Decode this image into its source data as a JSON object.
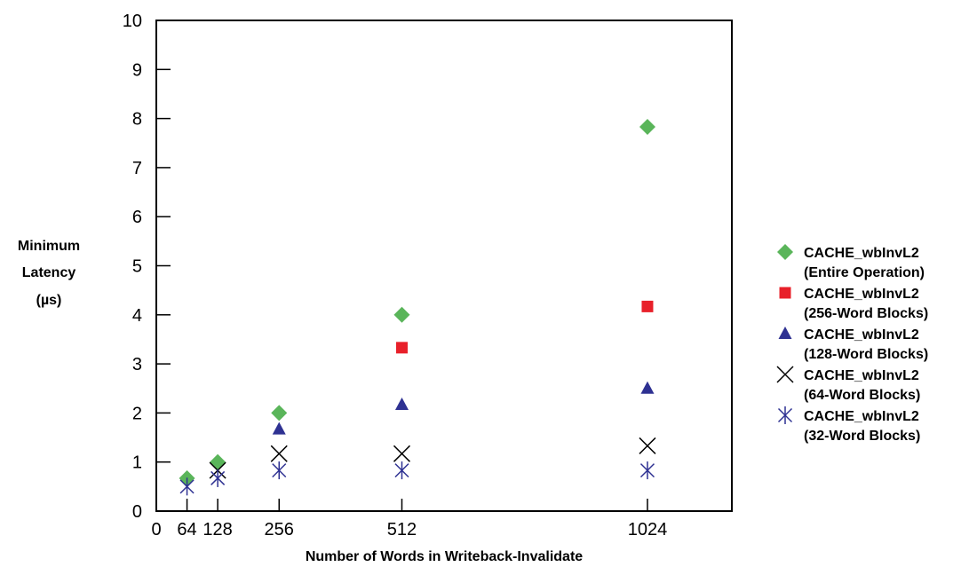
{
  "chart_data": {
    "type": "scatter",
    "xlabel": "Number of Words in Writeback-Invalidate",
    "ylabel_lines": [
      "Minimum",
      "Latency",
      "(µs)"
    ],
    "x_ticks": [
      0,
      64,
      128,
      256,
      512,
      1024
    ],
    "y_ticks": [
      0,
      1,
      2,
      3,
      4,
      5,
      6,
      7,
      8,
      9,
      10
    ],
    "xlim": [
      0,
      1200
    ],
    "ylim": [
      0,
      10
    ],
    "grid": false,
    "legend_position": "right",
    "series": [
      {
        "name_lines": [
          "CACHE_wbInvL2",
          "(Entire Operation)"
        ],
        "marker": "diamond",
        "color": "#5ab55a",
        "points": [
          [
            64,
            0.67
          ],
          [
            128,
            1.0
          ],
          [
            256,
            2.0
          ],
          [
            512,
            4.0
          ],
          [
            1024,
            7.83
          ]
        ]
      },
      {
        "name_lines": [
          "CACHE_wbInvL2",
          "(256-Word Blocks)"
        ],
        "marker": "square",
        "color": "#e8202a",
        "points": [
          [
            512,
            3.33
          ],
          [
            1024,
            4.17
          ]
        ]
      },
      {
        "name_lines": [
          "CACHE_wbInvL2",
          "(128-Word Blocks)"
        ],
        "marker": "triangle",
        "color": "#2e3192",
        "points": [
          [
            256,
            1.67
          ],
          [
            512,
            2.17
          ],
          [
            1024,
            2.5
          ]
        ]
      },
      {
        "name_lines": [
          "CACHE_wbInvL2",
          "(64-Word Blocks)"
        ],
        "marker": "x",
        "color": "#000000",
        "points": [
          [
            128,
            0.83
          ],
          [
            256,
            1.17
          ],
          [
            512,
            1.17
          ],
          [
            1024,
            1.33
          ]
        ]
      },
      {
        "name_lines": [
          "CACHE_wbInvL2",
          "(32-Word Blocks)"
        ],
        "marker": "asterisk",
        "color": "#2e3192",
        "points": [
          [
            64,
            0.5
          ],
          [
            128,
            0.67
          ],
          [
            256,
            0.83
          ],
          [
            512,
            0.83
          ],
          [
            1024,
            0.83
          ]
        ]
      }
    ]
  }
}
